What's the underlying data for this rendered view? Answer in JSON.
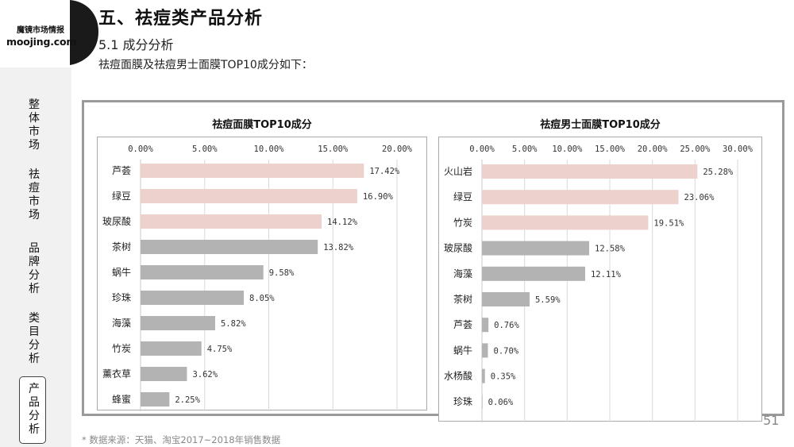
{
  "brand": {
    "name_cn": "魔镜市场情报",
    "domain": "moojing.com"
  },
  "sidebar": {
    "items": [
      {
        "label": "整体市场",
        "active": false
      },
      {
        "label": "祛痘市场",
        "active": false
      },
      {
        "label": "品牌分析",
        "active": false
      },
      {
        "label": "类目分析",
        "active": false
      },
      {
        "label": "产品分析",
        "active": true
      }
    ]
  },
  "header": {
    "title": "五、祛痘类产品分析",
    "subtitle": "5.1 成分分析",
    "intro": "祛痘面膜及祛痘男士面膜TOP10成分如下："
  },
  "colors": {
    "top3_bar": "#ecd1cc",
    "other_bar": "#b3b3b3",
    "frame": "#9a9a9a",
    "sidebar_bg": "#f1f1f1"
  },
  "chart_data": [
    {
      "type": "bar",
      "orientation": "horizontal",
      "title": "祛痘面膜TOP10成分",
      "categories": [
        "芦荟",
        "绿豆",
        "玻尿酸",
        "茶树",
        "蜗牛",
        "珍珠",
        "海藻",
        "竹炭",
        "薰衣草",
        "蜂蜜"
      ],
      "values": [
        17.42,
        16.9,
        14.12,
        13.82,
        9.58,
        8.05,
        5.82,
        4.75,
        3.62,
        2.25
      ],
      "value_labels": [
        "17.42%",
        "16.90%",
        "14.12%",
        "13.82%",
        "9.58%",
        "8.05%",
        "5.82%",
        "4.75%",
        "3.62%",
        "2.25%"
      ],
      "xlim": [
        0,
        20
      ],
      "ticks": [
        0,
        5,
        10,
        15,
        20
      ],
      "tick_labels": [
        "0.00%",
        "5.00%",
        "10.00%",
        "15.00%",
        "20.00%"
      ],
      "highlight_count": 3,
      "grid": true,
      "axis_position": "top"
    },
    {
      "type": "bar",
      "orientation": "horizontal",
      "title": "祛痘男士面膜TOP10成分",
      "categories": [
        "火山岩",
        "绿豆",
        "竹炭",
        "玻尿酸",
        "海藻",
        "茶树",
        "芦荟",
        "蜗牛",
        "水杨酸",
        "珍珠"
      ],
      "values": [
        25.28,
        23.06,
        19.51,
        12.58,
        12.11,
        5.59,
        0.76,
        0.7,
        0.35,
        0.06
      ],
      "value_labels": [
        "25.28%",
        "23.06%",
        "19.51%",
        "12.58%",
        "12.11%",
        "5.59%",
        "0.76%",
        "0.70%",
        "0.35%",
        "0.06%"
      ],
      "xlim": [
        0,
        30
      ],
      "ticks": [
        0,
        5,
        10,
        15,
        20,
        25,
        30
      ],
      "tick_labels": [
        "0.00%",
        "5.00%",
        "10.00%",
        "15.00%",
        "20.00%",
        "25.00%",
        "30.00%"
      ],
      "highlight_count": 3,
      "grid": true,
      "axis_position": "top"
    }
  ],
  "footer": {
    "page_number": "51",
    "source": "* 数据来源：天猫、淘宝2017~2018年销售数据"
  }
}
